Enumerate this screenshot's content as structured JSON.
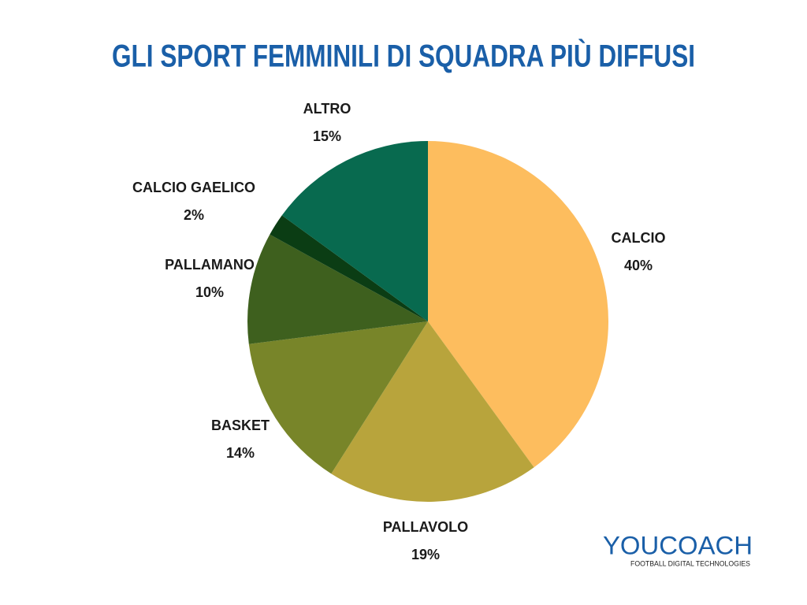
{
  "chart_data": {
    "type": "pie",
    "title": "GLI SPORT FEMMINILI DI SQUADRA PIÙ DIFFUSI",
    "categories": [
      "CALCIO",
      "PALLAVOLO",
      "BASKET",
      "PALLAMANO",
      "CALCIO GAELICO",
      "ALTRO"
    ],
    "values": [
      40,
      19,
      14,
      10,
      2,
      15
    ],
    "value_labels": [
      "40%",
      "19%",
      "14%",
      "10%",
      "2%",
      "15%"
    ],
    "colors": [
      "#fdbd5e",
      "#b8a43c",
      "#788529",
      "#3e601e",
      "#0b3d14",
      "#086a4f"
    ]
  },
  "logo": {
    "name": "YOUCOACH",
    "tagline": "FOOTBALL DIGITAL TECHNOLOGIES"
  }
}
